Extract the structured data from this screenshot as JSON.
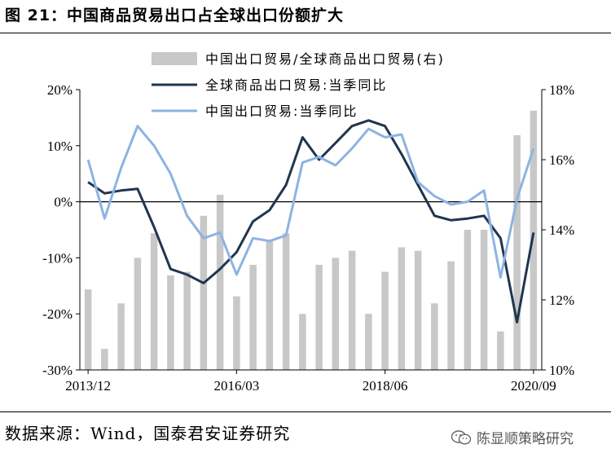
{
  "figure": {
    "title": "图 21：中国商品贸易出口占全球出口份额扩大",
    "source": "数据来源：Wind，国泰君安证券研究",
    "watermark": "陈显顺策略研究",
    "watermark_icon": "wechat-icon"
  },
  "chart_data": {
    "type": "bar+line",
    "x_tick_labels": [
      "2013/12",
      "2016/03",
      "2018/06",
      "2020/09"
    ],
    "left_axis": {
      "ylim": [
        -30,
        20
      ],
      "ticks": [
        "20%",
        "10%",
        "0%",
        "-10%",
        "-20%",
        "-30%"
      ],
      "unit": "%"
    },
    "right_axis": {
      "ylim": [
        10,
        18
      ],
      "ticks": [
        "18%",
        "16%",
        "14%",
        "12%",
        "10%"
      ],
      "unit": "%"
    },
    "series": [
      {
        "name": "中国出口贸易/全球商品出口贸易(右)",
        "kind": "bar",
        "axis": "right",
        "color": "#c8c8c8",
        "values": [
          12.3,
          10.6,
          11.9,
          13.2,
          13.9,
          12.7,
          12.8,
          14.4,
          15.0,
          12.1,
          13.0,
          13.7,
          13.9,
          11.6,
          13.0,
          13.2,
          13.4,
          11.6,
          12.8,
          13.5,
          13.4,
          11.9,
          13.1,
          14.0,
          14.0,
          11.1,
          16.7,
          17.4
        ]
      },
      {
        "name": "全球商品出口贸易:当季同比",
        "kind": "line",
        "axis": "left",
        "color": "#1f3550",
        "values": [
          3.5,
          1.5,
          2.0,
          2.3,
          -4.5,
          -12.0,
          -13.0,
          -14.5,
          -12.0,
          -9.0,
          -3.5,
          -1.5,
          3.0,
          11.5,
          7.5,
          10.5,
          13.5,
          14.5,
          13.5,
          8.5,
          3.0,
          -2.5,
          -3.3,
          -3.0,
          -2.5,
          -6.5,
          -21.5,
          -5.5
        ]
      },
      {
        "name": "中国出口贸易:当季同比",
        "kind": "line",
        "axis": "left",
        "color": "#8db3e2",
        "values": [
          7.5,
          -3.0,
          6.0,
          13.5,
          10.0,
          5.0,
          -2.5,
          -6.5,
          -5.5,
          -13.0,
          -6.5,
          -7.0,
          -6.0,
          7.0,
          8.0,
          6.5,
          9.5,
          13.0,
          11.5,
          12.0,
          3.5,
          1.0,
          -0.5,
          0.0,
          2.0,
          -13.5,
          0.5,
          9.5
        ]
      }
    ],
    "legend_position": "top",
    "zero_line": true,
    "grid": false
  }
}
